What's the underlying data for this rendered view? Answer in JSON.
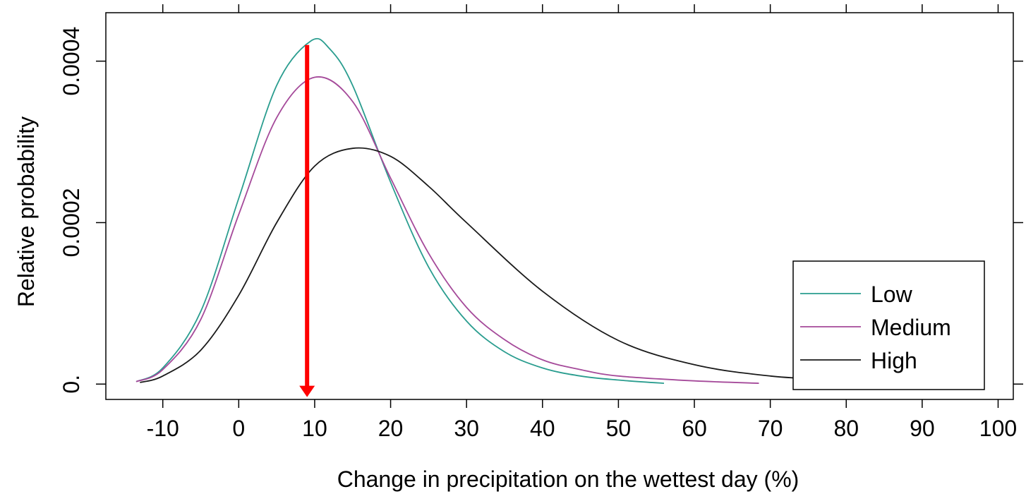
{
  "chart_data": {
    "type": "line",
    "title": "",
    "xlabel": "Change in precipitation on the wettest day (%)",
    "ylabel": "Relative probability",
    "xlim": [
      -17.5,
      102
    ],
    "ylim": [
      -1.9e-05,
      0.00046
    ],
    "x_ticks": [
      -10,
      0,
      10,
      20,
      30,
      40,
      50,
      60,
      70,
      80,
      90,
      100
    ],
    "x_tick_labels": [
      "-10",
      "0",
      "10",
      "20",
      "30",
      "40",
      "50",
      "60",
      "70",
      "80",
      "90",
      "100"
    ],
    "y_ticks": [
      0,
      0.0002,
      0.0004
    ],
    "y_tick_labels": [
      "0.",
      "0.0002",
      "0.0004"
    ],
    "grid": false,
    "legend_position": "bottom-right",
    "series": [
      {
        "name": "Low",
        "color": "#2a9d8f",
        "x": [
          -13.5,
          -10,
          -5,
          0,
          5,
          9.5,
          12,
          15,
          20,
          25,
          30,
          35,
          40,
          45,
          50,
          56
        ],
        "y": [
          3e-06,
          2e-05,
          9e-05,
          0.00023,
          0.00037,
          0.000425,
          0.000415,
          0.00037,
          0.00025,
          0.000145,
          7.8e-05,
          4e-05,
          2e-05,
          1e-05,
          5e-06,
          1e-06
        ]
      },
      {
        "name": "Medium",
        "color": "#a54a9a",
        "x": [
          -13.5,
          -10,
          -5,
          0,
          5,
          10,
          15,
          20,
          25,
          30,
          35,
          40,
          45,
          50,
          60,
          68.5
        ],
        "y": [
          3e-06,
          1.8e-05,
          8e-05,
          0.00021,
          0.00033,
          0.00038,
          0.00035,
          0.000255,
          0.000162,
          9.5e-05,
          5.5e-05,
          3e-05,
          1.8e-05,
          1e-05,
          4e-06,
          1e-06
        ]
      },
      {
        "name": "High",
        "color": "#1a1a1a",
        "x": [
          -13,
          -10,
          -5,
          0,
          5,
          10,
          15,
          20,
          25,
          30,
          40,
          50,
          60,
          70,
          80
        ],
        "y": [
          2e-06,
          1e-05,
          4.2e-05,
          0.00011,
          0.0002,
          0.00027,
          0.000292,
          0.000282,
          0.000245,
          0.0002,
          0.000115,
          5.4e-05,
          2.4e-05,
          1e-05,
          4e-06
        ]
      }
    ],
    "annotations": [
      {
        "type": "arrow",
        "color": "#ff0000",
        "x": 9,
        "y_from": 0.00042,
        "y_to": -1.6e-05
      }
    ]
  }
}
